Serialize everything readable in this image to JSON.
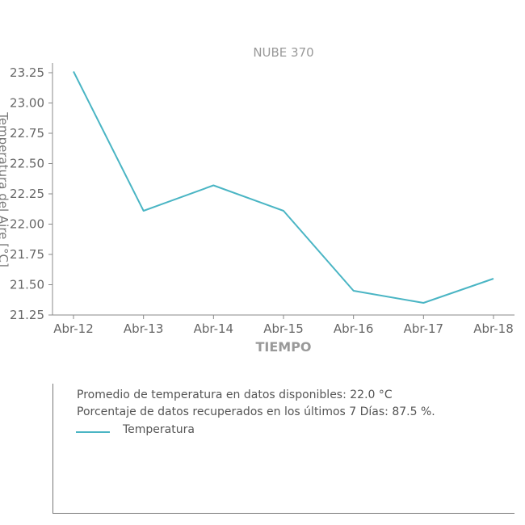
{
  "chart_data": {
    "type": "line",
    "title": "NUBE 370",
    "xlabel": "TIEMPO",
    "ylabel": "Temperatura del Aire [°C]",
    "categories": [
      "Abr-12",
      "Abr-13",
      "Abr-14",
      "Abr-15",
      "Abr-16",
      "Abr-17",
      "Abr-18"
    ],
    "series": [
      {
        "name": "Temperatura",
        "color": "#4ab5c4",
        "values": [
          23.26,
          22.11,
          22.32,
          22.11,
          21.45,
          21.35,
          21.55
        ]
      }
    ],
    "ylim": [
      21.25,
      23.33
    ],
    "yticks": [
      "21.25",
      "21.50",
      "21.75",
      "22.00",
      "22.25",
      "22.50",
      "22.75",
      "23.00",
      "23.25"
    ],
    "grid": false
  },
  "info": {
    "line1": "Promedio de temperatura en datos disponibles: 22.0 °C",
    "line2": "Porcentaje de datos recuperados en los últimos 7 Días: 87.5 %.",
    "legend_label": "Temperatura"
  }
}
